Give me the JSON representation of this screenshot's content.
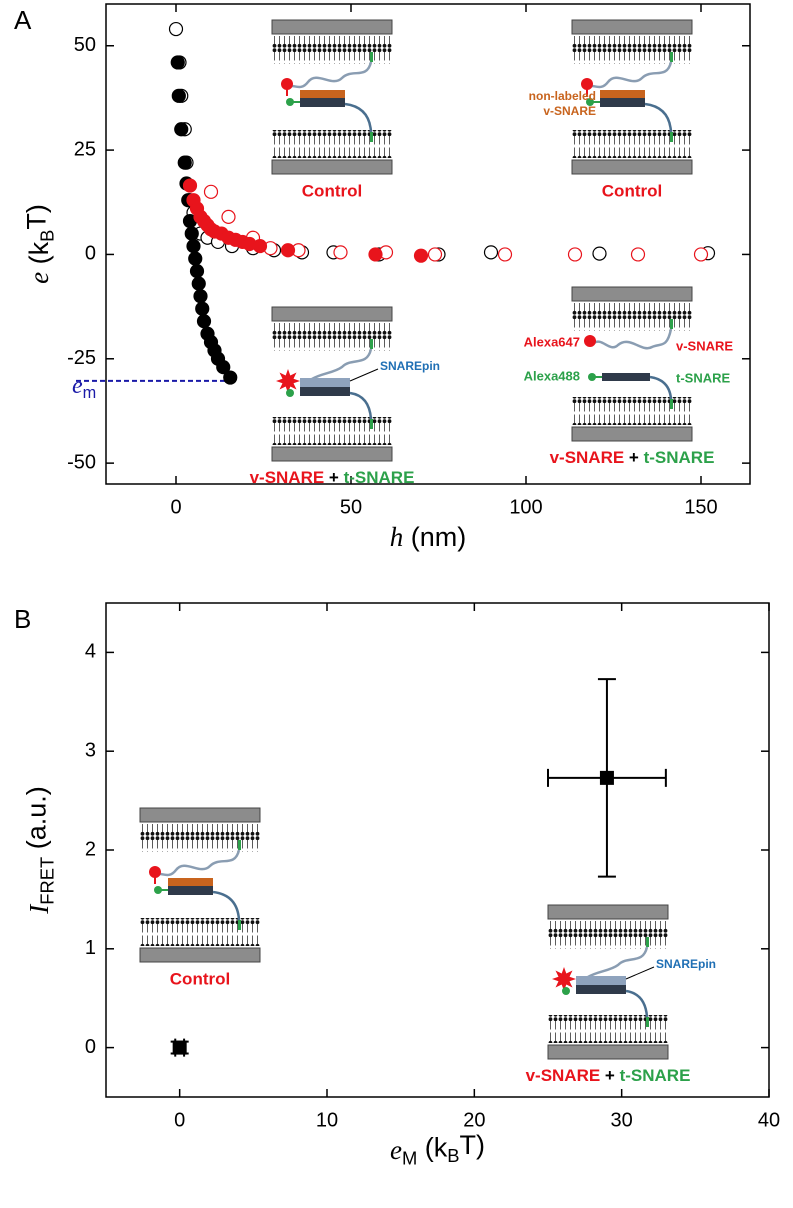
{
  "chart_data": [
    {
      "type": "scatter",
      "panel_label": "A",
      "xlabel": [
        {
          "text": "h",
          "style": "italic"
        },
        {
          "text": " (nm)"
        }
      ],
      "ylabel": [
        {
          "text": "e",
          "style": "italic"
        },
        {
          "text": " (k"
        },
        {
          "text": "B",
          "style": "sub"
        },
        {
          "text": "T)"
        }
      ],
      "xlim": [
        -20,
        164
      ],
      "ylim": [
        -55,
        60
      ],
      "xticks": [
        0,
        50,
        100,
        150
      ],
      "yticks": [
        -50,
        -25,
        0,
        25,
        50
      ],
      "series": [
        {
          "color": "#000000",
          "marker": "open",
          "x": [
            0,
            1,
            1.5,
            2.5,
            3,
            4,
            5,
            6,
            7,
            9,
            12,
            16,
            22,
            28,
            36,
            45,
            58,
            75,
            90,
            121,
            152
          ],
          "values": [
            54,
            46,
            38,
            30,
            22,
            13,
            10,
            7,
            5,
            4,
            3,
            2,
            1.5,
            1,
            0.5,
            0.5,
            0,
            0,
            0.5,
            0.2,
            0.3
          ]
        },
        {
          "color": "#000000",
          "marker": "filled",
          "x": [
            0.5,
            0.8,
            1.5,
            2.5,
            3,
            3.5,
            4,
            4.5,
            5,
            5.5,
            6,
            6.5,
            7,
            7.5,
            8,
            9,
            10,
            11,
            12,
            13.5,
            15.5
          ],
          "values": [
            46,
            38,
            30,
            22,
            17,
            13,
            8,
            5,
            2,
            -1,
            -4,
            -7,
            -10,
            -13,
            -16,
            -19,
            -21,
            -23,
            -25,
            -27,
            -29.5
          ]
        },
        {
          "color": "#e8141c",
          "marker": "open",
          "x": [
            10,
            15,
            22,
            27,
            35,
            47,
            60,
            74,
            94,
            114,
            132,
            150
          ],
          "values": [
            15,
            9,
            4,
            1.5,
            1,
            0.5,
            0.5,
            0,
            0,
            0,
            0,
            0
          ]
        },
        {
          "color": "#e8141c",
          "marker": "filled",
          "x": [
            4,
            5,
            6,
            7,
            8,
            9,
            10,
            11,
            13,
            15,
            17,
            19,
            21,
            24,
            32,
            57,
            70
          ],
          "values": [
            16.5,
            13,
            11,
            9,
            8,
            7,
            6,
            5.5,
            5,
            4,
            3.5,
            3,
            2.5,
            2,
            1,
            0,
            -0.3
          ]
        }
      ],
      "reference_line": {
        "label": [
          {
            "text": "e",
            "style": "italic"
          },
          {
            "text": "m",
            "style": "sub"
          }
        ],
        "y": -30.3,
        "x_end": 15.5,
        "color": "#1a1aa8"
      },
      "insets": [
        {
          "kind": "control",
          "caption": "Control"
        },
        {
          "kind": "control",
          "caption": "Control",
          "note": [
            "non-labeled",
            "v-SNARE"
          ]
        },
        {
          "kind": "pin",
          "pin_label": "SNAREpin",
          "caption_v": "v-SNARE",
          "caption_plus": "+",
          "caption_t": "t-SNARE"
        },
        {
          "kind": "apart",
          "dye_v": "Alexa647",
          "label_v": "v-SNARE",
          "dye_t": "Alexa488",
          "label_t": "t-SNARE",
          "caption_v": "v-SNARE",
          "caption_plus": "+",
          "caption_t": "t-SNARE"
        }
      ]
    },
    {
      "type": "errorbar",
      "panel_label": "B",
      "xlabel": [
        {
          "text": "e",
          "style": "italic"
        },
        {
          "text": "M",
          "style": "sub"
        },
        {
          "text": "  (k"
        },
        {
          "text": "B",
          "style": "sub"
        },
        {
          "text": "T)"
        }
      ],
      "ylabel": [
        {
          "text": "I",
          "style": "italic"
        },
        {
          "text": "FRET",
          "style": "sub"
        },
        {
          "text": " (a.u.)"
        }
      ],
      "xlim": [
        -5,
        40
      ],
      "ylim": [
        -0.5,
        4.5
      ],
      "xticks": [
        0,
        10,
        20,
        30,
        40
      ],
      "yticks": [
        0,
        1,
        2,
        3,
        4
      ],
      "series": [
        {
          "color": "#000000",
          "x": [
            0,
            29
          ],
          "values": [
            0,
            2.73
          ],
          "xerr": [
            0.3,
            4
          ],
          "yerr": [
            0.06,
            1.0
          ]
        }
      ],
      "insets": [
        {
          "kind": "control",
          "caption": "Control"
        },
        {
          "kind": "pin",
          "pin_label": "SNAREpin",
          "caption_v": "v-SNARE",
          "caption_plus": "+",
          "caption_t": "t-SNARE"
        }
      ]
    }
  ]
}
